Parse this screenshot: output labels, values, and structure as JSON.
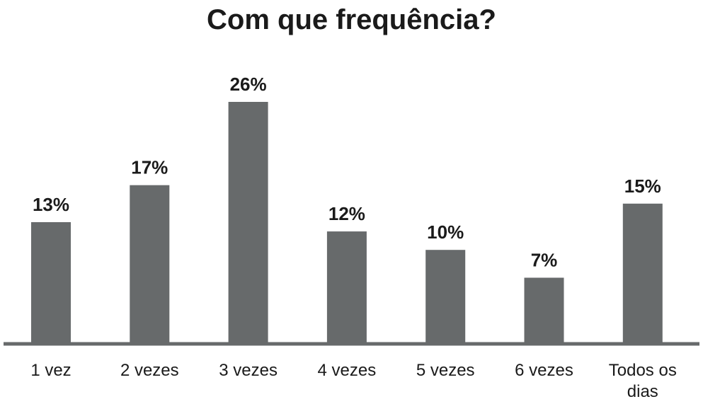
{
  "chart_data": {
    "type": "bar",
    "title": "Com que frequência?",
    "xlabel": "",
    "ylabel": "",
    "categories": [
      "1 vez",
      "2 vezes",
      "3 vezes",
      "4 vezes",
      "5 vezes",
      "6 vezes",
      "Todos os dias"
    ],
    "category_lines": [
      [
        "1 vez"
      ],
      [
        "2 vezes"
      ],
      [
        "3 vezes"
      ],
      [
        "4 vezes"
      ],
      [
        "5 vezes"
      ],
      [
        "6 vezes"
      ],
      [
        "Todos os",
        "dias"
      ]
    ],
    "values": [
      13,
      17,
      26,
      12,
      10,
      7,
      15
    ],
    "value_labels": [
      "13%",
      "17%",
      "26%",
      "12%",
      "10%",
      "7%",
      "15%"
    ],
    "ylim": [
      0,
      26
    ],
    "grid": false,
    "legend": "none",
    "colors": {
      "bar": "#676a6b",
      "axis": "#676a6b",
      "text": "#1a1a1a"
    }
  }
}
